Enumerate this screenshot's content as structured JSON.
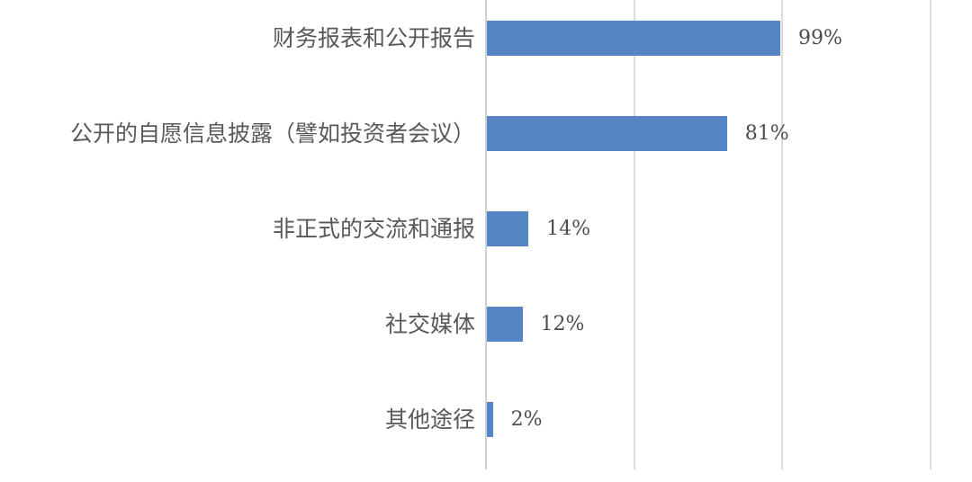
{
  "chart_data": {
    "type": "bar",
    "orientation": "horizontal",
    "title": "",
    "xlabel": "",
    "ylabel": "",
    "categories": [
      "财务报表和公开报告",
      "公开的自愿信息披露（譬如投资者会议）",
      "非正式的交流和通报",
      "社交媒体",
      "其他途径"
    ],
    "values": [
      99,
      81,
      14,
      12,
      2
    ],
    "value_labels": [
      "99%",
      "81%",
      "14%",
      "12%",
      "2%"
    ],
    "xlim": [
      0,
      150
    ],
    "gridline_interval": 50,
    "grid": true,
    "legend": false,
    "colors": {
      "bar": "#5585C5",
      "gridline": "#DCDCDC",
      "axis_line": "#D0D0D0",
      "category_text": "#595959",
      "value_text": "#4d4d4d",
      "background": "#ffffff"
    }
  }
}
